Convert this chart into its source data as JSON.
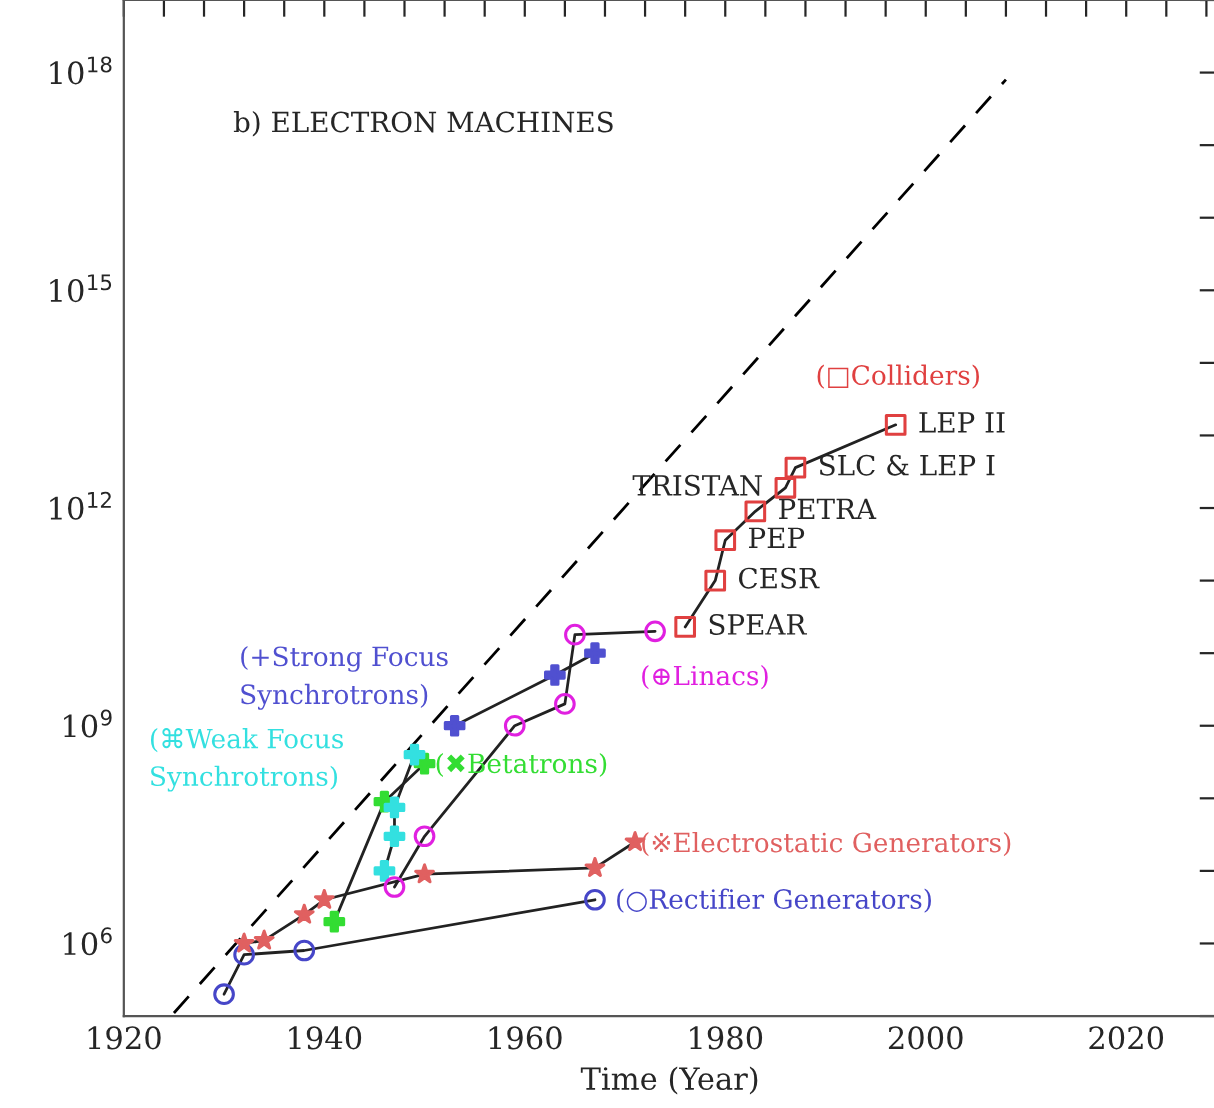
{
  "chart_data": {
    "type": "line",
    "xlabel": "Time (Year)",
    "log": "y",
    "grid": false,
    "legend": false,
    "xlim": [
      1920,
      2029
    ],
    "ylim": [
      100000.0,
      1e+19
    ],
    "xticks": [
      1920,
      {
        "value": 1924,
        "label": null
      },
      {
        "value": 1928,
        "label": null
      },
      {
        "value": 1932,
        "label": null
      },
      {
        "value": 1936,
        "label": null
      },
      1940,
      {
        "value": 1944,
        "label": null
      },
      {
        "value": 1948,
        "label": null
      },
      {
        "value": 1952,
        "label": null
      },
      {
        "value": 1956,
        "label": null
      },
      1960,
      {
        "value": 1964,
        "label": null
      },
      {
        "value": 1968,
        "label": null
      },
      {
        "value": 1972,
        "label": null
      },
      {
        "value": 1976,
        "label": null
      },
      1980,
      {
        "value": 1984,
        "label": null
      },
      {
        "value": 1988,
        "label": null
      },
      {
        "value": 1992,
        "label": null
      },
      {
        "value": 1996,
        "label": null
      },
      2000,
      {
        "value": 2004,
        "label": null
      },
      {
        "value": 2008,
        "label": null
      },
      {
        "value": 2012,
        "label": null
      },
      {
        "value": 2016,
        "label": null
      },
      2020,
      {
        "value": 2024,
        "label": null
      },
      {
        "value": 2028,
        "label": null
      }
    ],
    "yticks": [
      {
        "value": 100000.0,
        "label": null
      },
      {
        "value": 1000000.0,
        "label": "10$^{6}$"
      },
      {
        "value": 10000000.0,
        "label": null
      },
      {
        "value": 100000000.0,
        "label": null
      },
      {
        "value": 1000000000.0,
        "label": "10$^{9}$"
      },
      {
        "value": 10000000000.0,
        "label": null
      },
      {
        "value": 100000000000.0,
        "label": null
      },
      {
        "value": 1000000000000.0,
        "label": "10$^{12}$"
      },
      {
        "value": 10000000000000.0,
        "label": null
      },
      {
        "value": 100000000000000.0,
        "label": null
      },
      {
        "value": 1000000000000000.0,
        "label": "10$^{15}$"
      },
      {
        "value": 1e+16,
        "label": null
      },
      {
        "value": 1e+17,
        "label": null
      },
      {
        "value": 1e+18,
        "label": "10$^{18}$"
      },
      {
        "value": 1e+19,
        "label": null
      }
    ],
    "series": [
      {
        "name": "(○Rectifier Generators)",
        "color": "#4646c8",
        "marker": "circle",
        "x": [
          1930,
          1932,
          1938,
          1967
        ],
        "values": [
          200000.0,
          700000.0,
          800000.0,
          4000000.0
        ]
      },
      {
        "name": "(※Electrostatic Generators)",
        "color": "#e06060",
        "marker": "star",
        "x": [
          1932,
          1934,
          1938,
          1940,
          1950,
          1967,
          1971
        ],
        "values": [
          1000000.0,
          1100000.0,
          2500000.0,
          4000000.0,
          9000000.0,
          11000000.0,
          25000000.0
        ]
      },
      {
        "name": "(✖Betatrons)",
        "color": "#33dd33",
        "marker": "cross",
        "x": [
          1941,
          1946,
          1950
        ],
        "values": [
          2000000.0,
          90000000.0,
          300000000.0
        ]
      },
      {
        "name": "(⌘Weak Focus\nSynchrotrons)",
        "color": "#33e0e0",
        "marker": "cross",
        "x": [
          1946,
          1947,
          1947,
          1949
        ],
        "values": [
          10000000.0,
          30000000.0,
          75000000.0,
          400000000.0
        ]
      },
      {
        "name": "(+Strong Focus\nSynchrotrons)",
        "color": "#5050d0",
        "marker": "cross",
        "x": [
          1953,
          1963,
          1967
        ],
        "values": [
          1000000000.0,
          5000000000.0,
          10000000000.0
        ]
      },
      {
        "name": "(⊕Linacs)",
        "color": "#e020e0",
        "marker": "circle",
        "x": [
          1947,
          1950,
          1959,
          1964,
          1965,
          1973
        ],
        "values": [
          6000000.0,
          30000000.0,
          1000000000.0,
          2000000000.0,
          18000000000.0,
          20000000000.0
        ]
      },
      {
        "name": "(□Colliders)",
        "color": "#e04040",
        "marker": "square",
        "x": [
          1976,
          1979,
          1980,
          1983,
          1986,
          1987,
          1997
        ],
        "values": [
          23000000000.0,
          100000000000.0,
          360000000000.0,
          900000000000.0,
          1900000000000.0,
          3600000000000.0,
          14000000000000.0
        ]
      },
      {
        "type": "line",
        "color": "#000000",
        "marker": "none",
        "line_style": "dashed",
        "x": [
          1925,
          2008
        ],
        "values": [
          110000.0,
          8e+17
        ]
      }
    ],
    "annotations": [
      "b) ELECTRON MACHINES",
      {
        "text": "SPEAR",
        "x": 1976,
        "y": 23000000000.0
      },
      {
        "text": "CESR",
        "x": 1979,
        "y": 100000000000.0
      },
      {
        "text": "PEP",
        "x": 1980,
        "y": 360000000000.0
      },
      {
        "text": "PETRA",
        "x": 1983,
        "y": 900000000000.0
      },
      {
        "text": "TRISTAN",
        "x": 1986,
        "y": 1900000000000.0
      },
      {
        "text": "SLC & LEP I",
        "x": 1987,
        "y": 3600000000000.0
      },
      {
        "text": "LEP II",
        "x": 1997,
        "y": 14000000000000.0
      }
    ]
  }
}
